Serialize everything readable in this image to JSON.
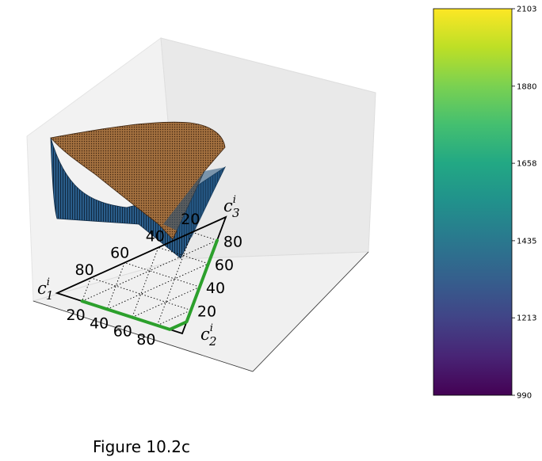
{
  "figure": {
    "caption": "Figure 10.2c"
  },
  "chart_data": {
    "type": "surface",
    "projection": "3d",
    "base": "ternary",
    "ternary_axes": [
      {
        "name": "c1",
        "symbol": "c",
        "subscript": "1",
        "superscript": "i",
        "ticks": [
          "20",
          "40",
          "60",
          "80"
        ]
      },
      {
        "name": "c2",
        "symbol": "c",
        "subscript": "2",
        "superscript": "i",
        "ticks": [
          "20",
          "40",
          "60",
          "80"
        ]
      },
      {
        "name": "c3",
        "symbol": "c",
        "subscript": "3",
        "superscript": "i",
        "ticks": [
          "20",
          "40",
          "60",
          "80"
        ]
      }
    ],
    "left_edge_ticks": [
      "80",
      "60",
      "40",
      "20"
    ],
    "bottom_edge_ticks": [
      "20",
      "40",
      "60",
      "80"
    ],
    "right_edge_ticks": [
      "80",
      "60",
      "40",
      "20"
    ],
    "grid": "dotted",
    "path": {
      "color": "#2ca02c",
      "points": [
        [
          80,
          20,
          0
        ],
        [
          10,
          90,
          0
        ],
        [
          0,
          90,
          10
        ],
        [
          0,
          20,
          80
        ]
      ]
    },
    "surfaces": [
      {
        "color": "#a06a3c",
        "edge": "#4a2e16"
      },
      {
        "color": "#1f4e79",
        "edge": "#0f2a44"
      }
    ],
    "colorbar": {
      "cmap": "viridis",
      "min": 990,
      "max": 2103,
      "ticks": [
        "990",
        "1213",
        "1435",
        "1658",
        "1880",
        "2103"
      ]
    }
  }
}
